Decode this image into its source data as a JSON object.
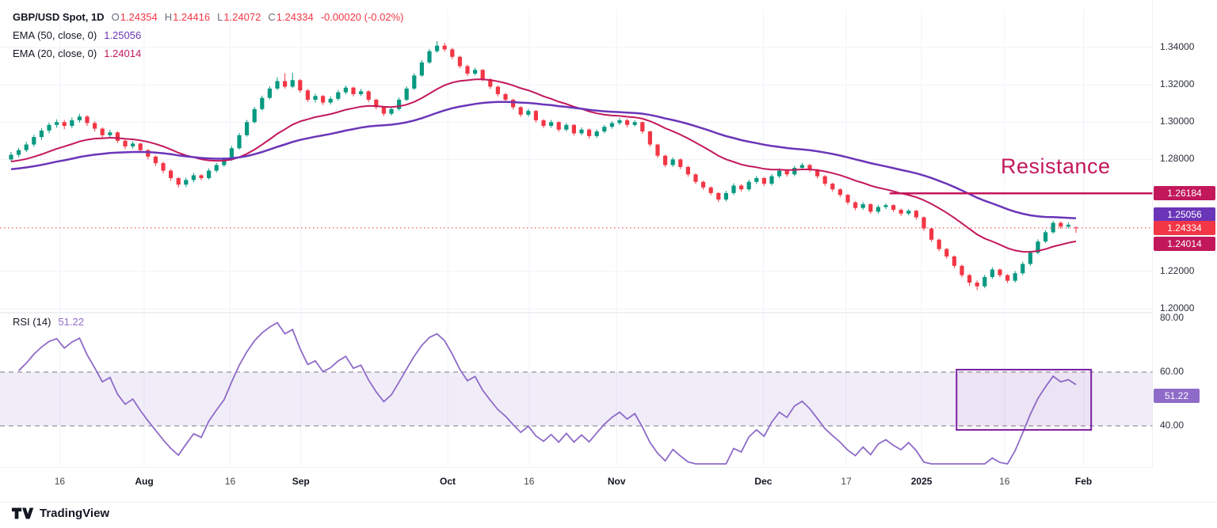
{
  "header": {
    "symbol_title": "GBP/USD Spot, 1D",
    "ohlc": [
      {
        "k": "O",
        "v": "1.24354"
      },
      {
        "k": "H",
        "v": "1.24416"
      },
      {
        "k": "L",
        "v": "1.24072"
      },
      {
        "k": "C",
        "v": "1.24334"
      }
    ],
    "change_label": "-0.00020 (-0.02%)",
    "ema50_label": "EMA (50, close, 0)",
    "ema50_value": "1.25056",
    "ema20_label": "EMA (20, close, 0)",
    "ema20_value": "1.24014"
  },
  "annotations": {
    "resistance_label": "Resistance"
  },
  "footer": {
    "brand": "TradingView"
  },
  "colors": {
    "up": "#089981",
    "down": "#F23645",
    "ema50": "#6A35B8",
    "ema20": "#C2185B",
    "resistance": "#C2185B",
    "rsi": "#8E6BC8",
    "rsi_band_fill": "rgba(142,107,200,0.12)",
    "band_border": "#787B86",
    "box_stroke": "#7B1FA2",
    "box_fill": "rgba(123,31,162,0.04)",
    "grid": "#F0F3FA",
    "separator": "#E0E3EB"
  },
  "chart_data": [
    {
      "type": "candlestick",
      "title": "GBP/USD Spot",
      "timeframe": "1D",
      "ylim": [
        1.196,
        1.354
      ],
      "last_price": 1.24334,
      "y_ticks": [
        {
          "label": "1.34000",
          "value": 1.34
        },
        {
          "label": "1.32000",
          "value": 1.32
        },
        {
          "label": "1.30000",
          "value": 1.3
        },
        {
          "label": "1.28000",
          "value": 1.28
        },
        {
          "label": "1.22000",
          "value": 1.22
        },
        {
          "label": "1.20000",
          "value": 1.2
        }
      ],
      "x_ticks": [
        {
          "i": 6.4,
          "label": "16"
        },
        {
          "i": 17.5,
          "label": "Aug",
          "major": true
        },
        {
          "i": 28.8,
          "label": "16"
        },
        {
          "i": 38.1,
          "label": "Sep",
          "major": true
        },
        {
          "i": 57.4,
          "label": "Oct",
          "major": true
        },
        {
          "i": 68.1,
          "label": "16"
        },
        {
          "i": 79.6,
          "label": "Nov",
          "major": true
        },
        {
          "i": 98.9,
          "label": "Dec",
          "major": true
        },
        {
          "i": 109.8,
          "label": "17"
        },
        {
          "i": 119.7,
          "label": "2025",
          "major": true
        },
        {
          "i": 130.6,
          "label": "16"
        },
        {
          "i": 141.0,
          "label": "Feb",
          "major": true
        }
      ],
      "overlays": [
        {
          "name": "EMA (50, close, 0)",
          "period": 50,
          "value": 1.25056,
          "color": "#6A35B8",
          "seed_offset": -0.008
        },
        {
          "name": "EMA (20, close, 0)",
          "period": 20,
          "value": 1.24014,
          "color": "#C2185B",
          "seed_offset": -0.004
        }
      ],
      "resistance": {
        "price": 1.26184,
        "start_index": 115.5,
        "label": "Resistance"
      },
      "axis_badges": [
        {
          "name": "resistance-price-badge",
          "label": "1.26184",
          "value": 1.26184,
          "color": "#C2185B",
          "dy": 0
        },
        {
          "name": "ema50-price-badge",
          "label": "1.25056",
          "value": 1.25056,
          "color": "#6A35B8",
          "dy": 0
        },
        {
          "name": "last-price-badge",
          "label": "1.24334",
          "value": 1.24334,
          "color": "#F23645",
          "dy": 0
        },
        {
          "name": "ema20-price-badge",
          "label": "1.24014",
          "value": 1.24014,
          "color": "#C2185B",
          "dy": 13
        }
      ],
      "ohlc": [
        [
          1.28,
          1.284,
          1.279,
          1.2825
        ],
        [
          1.2825,
          1.2862,
          1.2812,
          1.285
        ],
        [
          1.285,
          1.2895,
          1.284,
          1.288
        ],
        [
          1.288,
          1.2932,
          1.2868,
          1.292
        ],
        [
          1.292,
          1.2968,
          1.2905,
          1.2955
        ],
        [
          1.2955,
          1.2998,
          1.294,
          1.2985
        ],
        [
          1.2985,
          1.3015,
          1.297,
          1.3
        ],
        [
          1.3,
          1.3012,
          1.2962,
          1.298
        ],
        [
          1.298,
          1.3025,
          1.2968,
          1.301
        ],
        [
          1.301,
          1.3045,
          1.2998,
          1.303
        ],
        [
          1.303,
          1.3038,
          1.298,
          1.2995
        ],
        [
          1.2995,
          1.3005,
          1.295,
          1.2965
        ],
        [
          1.2965,
          1.2972,
          1.2915,
          1.293
        ],
        [
          1.293,
          1.2958,
          1.2918,
          1.2945
        ],
        [
          1.2945,
          1.295,
          1.2888,
          1.29
        ],
        [
          1.29,
          1.2908,
          1.2855,
          1.287
        ],
        [
          1.287,
          1.2898,
          1.2858,
          1.2885
        ],
        [
          1.2885,
          1.289,
          1.2838,
          1.285
        ],
        [
          1.285,
          1.2856,
          1.28,
          1.2815
        ],
        [
          1.2815,
          1.2822,
          1.2765,
          1.278
        ],
        [
          1.278,
          1.2788,
          1.2725,
          1.274
        ],
        [
          1.274,
          1.2748,
          1.2685,
          1.27
        ],
        [
          1.27,
          1.2705,
          1.265,
          1.2665
        ],
        [
          1.2665,
          1.2702,
          1.2652,
          1.269
        ],
        [
          1.269,
          1.2728,
          1.2678,
          1.2715
        ],
        [
          1.2715,
          1.2722,
          1.2688,
          1.27
        ],
        [
          1.27,
          1.2752,
          1.2692,
          1.274
        ],
        [
          1.274,
          1.2782,
          1.273,
          1.277
        ],
        [
          1.277,
          1.2812,
          1.276,
          1.28
        ],
        [
          1.28,
          1.2872,
          1.2792,
          1.286
        ],
        [
          1.286,
          1.2942,
          1.2852,
          1.293
        ],
        [
          1.293,
          1.3012,
          1.2922,
          1.3
        ],
        [
          1.3,
          1.3082,
          1.2992,
          1.307
        ],
        [
          1.307,
          1.3142,
          1.3062,
          1.313
        ],
        [
          1.313,
          1.3192,
          1.3122,
          1.318
        ],
        [
          1.318,
          1.324,
          1.3172,
          1.322
        ],
        [
          1.322,
          1.3262,
          1.318,
          1.319
        ],
        [
          1.319,
          1.3265,
          1.3182,
          1.3225
        ],
        [
          1.3225,
          1.3232,
          1.3158,
          1.317
        ],
        [
          1.317,
          1.3178,
          1.3108,
          1.312
        ],
        [
          1.312,
          1.3152,
          1.3105,
          1.314
        ],
        [
          1.314,
          1.3146,
          1.3092,
          1.3105
        ],
        [
          1.3105,
          1.3138,
          1.3094,
          1.3125
        ],
        [
          1.3125,
          1.3172,
          1.3115,
          1.316
        ],
        [
          1.316,
          1.3196,
          1.3148,
          1.3185
        ],
        [
          1.3185,
          1.319,
          1.3138,
          1.315
        ],
        [
          1.315,
          1.3178,
          1.314,
          1.3165
        ],
        [
          1.3165,
          1.317,
          1.3108,
          1.312
        ],
        [
          1.312,
          1.3126,
          1.3068,
          1.308
        ],
        [
          1.308,
          1.3086,
          1.3032,
          1.3045
        ],
        [
          1.3045,
          1.3082,
          1.3035,
          1.307
        ],
        [
          1.307,
          1.3132,
          1.3062,
          1.312
        ],
        [
          1.312,
          1.3192,
          1.3112,
          1.318
        ],
        [
          1.318,
          1.3262,
          1.3172,
          1.325
        ],
        [
          1.325,
          1.3332,
          1.3242,
          1.332
        ],
        [
          1.332,
          1.3392,
          1.3312,
          1.338
        ],
        [
          1.338,
          1.3434,
          1.3372,
          1.341
        ],
        [
          1.341,
          1.3425,
          1.3378,
          1.339
        ],
        [
          1.339,
          1.3398,
          1.3338,
          1.335
        ],
        [
          1.335,
          1.3356,
          1.3288,
          1.33
        ],
        [
          1.33,
          1.3308,
          1.3248,
          1.326
        ],
        [
          1.326,
          1.3292,
          1.325,
          1.328
        ],
        [
          1.328,
          1.3285,
          1.3218,
          1.323
        ],
        [
          1.323,
          1.3236,
          1.3178,
          1.319
        ],
        [
          1.319,
          1.3196,
          1.3138,
          1.315
        ],
        [
          1.315,
          1.3158,
          1.3108,
          1.312
        ],
        [
          1.312,
          1.3126,
          1.3068,
          1.308
        ],
        [
          1.308,
          1.3086,
          1.3028,
          1.304
        ],
        [
          1.304,
          1.3072,
          1.303,
          1.306
        ],
        [
          1.306,
          1.3065,
          1.2998,
          1.301
        ],
        [
          1.301,
          1.3016,
          1.2968,
          1.298
        ],
        [
          1.298,
          1.3012,
          1.297,
          1.3
        ],
        [
          1.3,
          1.3005,
          1.2948,
          1.296
        ],
        [
          1.296,
          1.2996,
          1.295,
          1.2985
        ],
        [
          1.2985,
          1.299,
          1.2928,
          1.294
        ],
        [
          1.294,
          1.2972,
          1.293,
          1.296
        ],
        [
          1.296,
          1.2966,
          1.2912,
          1.2925
        ],
        [
          1.2925,
          1.2962,
          1.2915,
          1.295
        ],
        [
          1.295,
          1.2986,
          1.294,
          1.2975
        ],
        [
          1.2975,
          1.3006,
          1.2965,
          1.2995
        ],
        [
          1.2995,
          1.3022,
          1.2985,
          1.301
        ],
        [
          1.301,
          1.3018,
          1.2972,
          1.2985
        ],
        [
          1.2985,
          1.301,
          1.2975,
          1.3
        ],
        [
          1.3,
          1.3004,
          1.2938,
          1.295
        ],
        [
          1.295,
          1.2954,
          1.2868,
          1.288
        ],
        [
          1.288,
          1.2884,
          1.2808,
          1.282
        ],
        [
          1.282,
          1.2826,
          1.2758,
          1.277
        ],
        [
          1.277,
          1.2812,
          1.276,
          1.28
        ],
        [
          1.28,
          1.2806,
          1.2748,
          1.276
        ],
        [
          1.276,
          1.2766,
          1.2708,
          1.272
        ],
        [
          1.272,
          1.2726,
          1.2668,
          1.268
        ],
        [
          1.268,
          1.2686,
          1.2638,
          1.265
        ],
        [
          1.265,
          1.2656,
          1.2608,
          1.262
        ],
        [
          1.262,
          1.2625,
          1.2572,
          1.2585
        ],
        [
          1.2585,
          1.2632,
          1.2575,
          1.262
        ],
        [
          1.262,
          1.2672,
          1.261,
          1.266
        ],
        [
          1.266,
          1.2668,
          1.2628,
          1.264
        ],
        [
          1.264,
          1.2692,
          1.263,
          1.268
        ],
        [
          1.268,
          1.2712,
          1.2668,
          1.27
        ],
        [
          1.27,
          1.2706,
          1.2658,
          1.267
        ],
        [
          1.267,
          1.2722,
          1.266,
          1.271
        ],
        [
          1.271,
          1.2752,
          1.27,
          1.274
        ],
        [
          1.274,
          1.2748,
          1.2708,
          1.272
        ],
        [
          1.272,
          1.2766,
          1.271,
          1.2755
        ],
        [
          1.2755,
          1.2782,
          1.2744,
          1.277
        ],
        [
          1.277,
          1.2776,
          1.2732,
          1.2745
        ],
        [
          1.2745,
          1.275,
          1.2698,
          1.271
        ],
        [
          1.271,
          1.2716,
          1.2658,
          1.267
        ],
        [
          1.267,
          1.2676,
          1.2628,
          1.264
        ],
        [
          1.264,
          1.2646,
          1.2598,
          1.261
        ],
        [
          1.261,
          1.2616,
          1.2558,
          1.257
        ],
        [
          1.257,
          1.2576,
          1.2528,
          1.254
        ],
        [
          1.254,
          1.2572,
          1.253,
          1.256
        ],
        [
          1.256,
          1.2566,
          1.2508,
          1.252
        ],
        [
          1.252,
          1.2556,
          1.251,
          1.2545
        ],
        [
          1.2545,
          1.2566,
          1.2534,
          1.2555
        ],
        [
          1.2555,
          1.256,
          1.2518,
          1.253
        ],
        [
          1.253,
          1.2536,
          1.2498,
          1.251
        ],
        [
          1.251,
          1.2534,
          1.25,
          1.2525
        ],
        [
          1.2525,
          1.253,
          1.2478,
          1.249
        ],
        [
          1.249,
          1.2494,
          1.2418,
          1.243
        ],
        [
          1.243,
          1.2434,
          1.2358,
          1.237
        ],
        [
          1.237,
          1.2376,
          1.2308,
          1.232
        ],
        [
          1.232,
          1.2326,
          1.2268,
          1.228
        ],
        [
          1.228,
          1.2286,
          1.2218,
          1.223
        ],
        [
          1.223,
          1.2236,
          1.2168,
          1.218
        ],
        [
          1.218,
          1.2186,
          1.2122,
          1.214
        ],
        [
          1.214,
          1.2152,
          1.21,
          1.212
        ],
        [
          1.212,
          1.2182,
          1.211,
          1.217
        ],
        [
          1.217,
          1.2222,
          1.216,
          1.221
        ],
        [
          1.221,
          1.2216,
          1.2168,
          1.218
        ],
        [
          1.218,
          1.2186,
          1.2138,
          1.215
        ],
        [
          1.215,
          1.2202,
          1.214,
          1.219
        ],
        [
          1.219,
          1.2252,
          1.218,
          1.224
        ],
        [
          1.224,
          1.2312,
          1.223,
          1.23
        ],
        [
          1.23,
          1.2372,
          1.2292,
          1.236
        ],
        [
          1.236,
          1.2422,
          1.2352,
          1.241
        ],
        [
          1.241,
          1.2472,
          1.2402,
          1.246
        ],
        [
          1.246,
          1.2468,
          1.2428,
          1.244
        ],
        [
          1.244,
          1.2462,
          1.243,
          1.245
        ],
        [
          1.24354,
          1.24416,
          1.24072,
          1.24334
        ]
      ]
    },
    {
      "type": "line",
      "name": "RSI (14)",
      "period": 14,
      "value": 51.22,
      "value_label": "51.22",
      "band": [
        40,
        60
      ],
      "ylim": [
        20,
        85
      ],
      "y_ticks": [
        {
          "label": "80.00",
          "value": 80
        },
        {
          "label": "60.00",
          "value": 60
        },
        {
          "label": "40.00",
          "value": 40
        }
      ],
      "box": {
        "start_index": 124.3,
        "end_index": 142.0,
        "top": 60.9,
        "bottom": 38.5
      }
    }
  ]
}
